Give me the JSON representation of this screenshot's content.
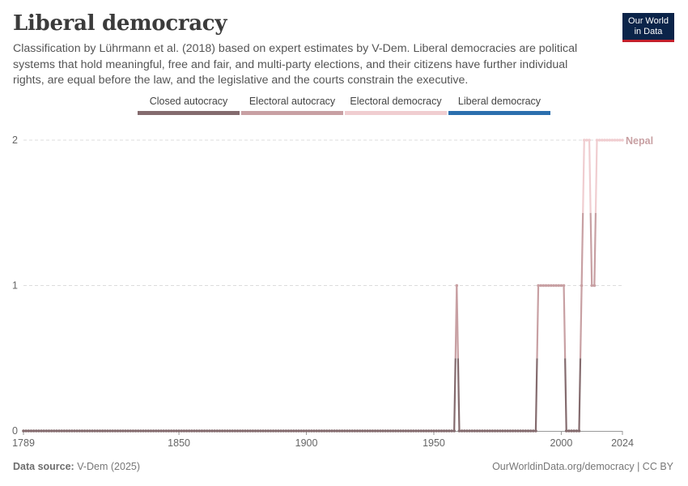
{
  "header": {
    "title": "Liberal democracy",
    "subtitle": "Classification by Lührmann et al. (2018) based on expert estimates by V-Dem. Liberal democracies are political systems that hold meaningful, free and fair, and multi-party elections, and their citizens have further individual rights, are equal before the law, and the legislative and the courts constrain the executive."
  },
  "logo": {
    "line1": "Our World",
    "line2": "in Data"
  },
  "legend": [
    {
      "label": "Closed autocracy",
      "color": "#846b6e"
    },
    {
      "label": "Electoral autocracy",
      "color": "#c8a0a3"
    },
    {
      "label": "Electoral democracy",
      "color": "#f0cdd0"
    },
    {
      "label": "Liberal democracy",
      "color": "#2b6fae"
    }
  ],
  "footer": {
    "source_label": "Data source:",
    "source_value": "V-Dem (2025)",
    "right": "OurWorldinData.org/democracy | CC BY"
  },
  "chart_data": {
    "type": "line",
    "title": "Liberal democracy",
    "xlabel": "",
    "ylabel": "",
    "xlim": [
      1789,
      2024
    ],
    "ylim": [
      0,
      2
    ],
    "x_ticks": [
      1789,
      1850,
      1900,
      1950,
      2000,
      2024
    ],
    "y_ticks": [
      0,
      1,
      2
    ],
    "grid": "horizontal dashed",
    "series": [
      {
        "name": "Nepal",
        "color": "#c8a0a3",
        "segments": [
          {
            "from": 1789,
            "to": 1958,
            "value": 0
          },
          {
            "from": 1959,
            "to": 1959,
            "value": 1
          },
          {
            "from": 1960,
            "to": 1990,
            "value": 0
          },
          {
            "from": 1991,
            "to": 2001,
            "value": 1
          },
          {
            "from": 2002,
            "to": 2007,
            "value": 0
          },
          {
            "from": 2008,
            "to": 2008,
            "value": 1
          },
          {
            "from": 2009,
            "to": 2011,
            "value": 2
          },
          {
            "from": 2012,
            "to": 2013,
            "value": 1
          },
          {
            "from": 2014,
            "to": 2024,
            "value": 2
          }
        ]
      }
    ]
  }
}
